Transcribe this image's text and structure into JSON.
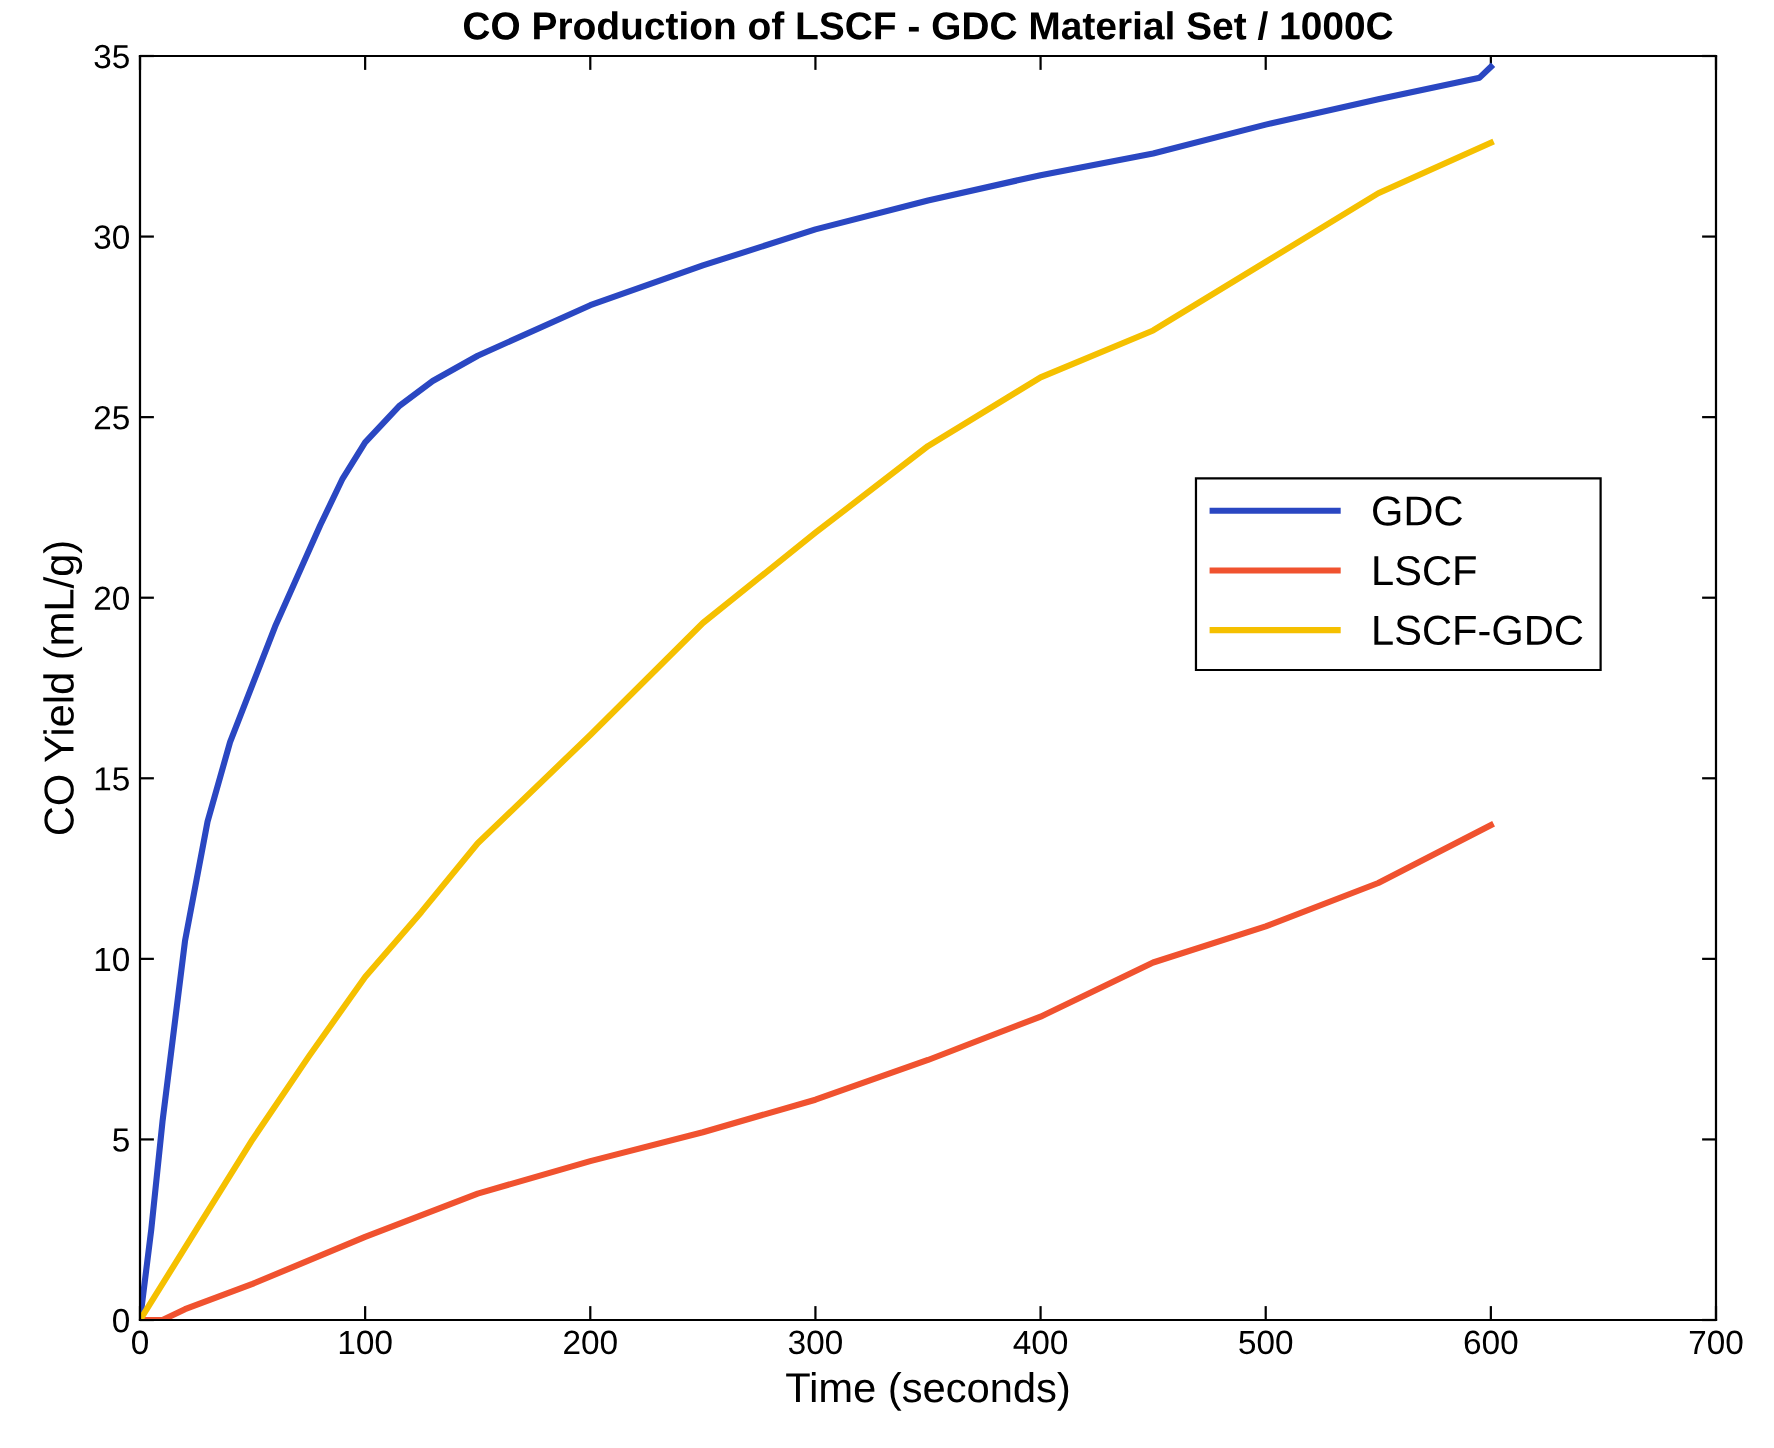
{
  "chart_data": {
    "type": "line",
    "title": "CO Production of LSCF - GDC Material Set / 1000C",
    "xlabel": "Time (seconds)",
    "ylabel": "CO Yield (mL/g)",
    "xlim": [
      0,
      700
    ],
    "xticks": [
      0,
      100,
      200,
      300,
      400,
      500,
      600,
      700
    ],
    "ylim": [
      0,
      35
    ],
    "yticks": [
      0,
      5,
      10,
      15,
      20,
      25,
      30,
      35
    ],
    "grid": false,
    "legend": "right",
    "series": [
      {
        "name": "GDC",
        "color": "#2a47c2",
        "x": [
          0,
          5,
          10,
          20,
          30,
          40,
          50,
          60,
          70,
          80,
          90,
          100,
          115,
          130,
          150,
          200,
          250,
          300,
          350,
          400,
          450,
          500,
          550,
          595,
          600
        ],
        "values": [
          0,
          2.5,
          5.5,
          10.5,
          13.8,
          16,
          17.6,
          19.2,
          20.6,
          22,
          23.3,
          24.3,
          25.3,
          26,
          26.7,
          28.1,
          29.2,
          30.2,
          31,
          31.7,
          32.3,
          33.1,
          33.8,
          34.4,
          34.7
        ]
      },
      {
        "name": "LSCF",
        "color": "#f0522f",
        "x": [
          0,
          10,
          20,
          50,
          100,
          150,
          200,
          250,
          300,
          350,
          400,
          450,
          500,
          550,
          600
        ],
        "values": [
          0,
          0,
          0.3,
          1,
          2.3,
          3.5,
          4.4,
          5.2,
          6.1,
          7.2,
          8.4,
          9.9,
          10.9,
          12.1,
          13.7
        ]
      },
      {
        "name": "LSCF-GDC",
        "color": "#f5c000",
        "x": [
          0,
          25,
          50,
          75,
          100,
          125,
          150,
          200,
          250,
          300,
          350,
          400,
          450,
          500,
          550,
          600
        ],
        "values": [
          0,
          2.5,
          5,
          7.3,
          9.5,
          11.3,
          13.2,
          16.2,
          19.3,
          21.8,
          24.2,
          26.1,
          27.4,
          29.3,
          31.2,
          32.6
        ]
      }
    ]
  }
}
